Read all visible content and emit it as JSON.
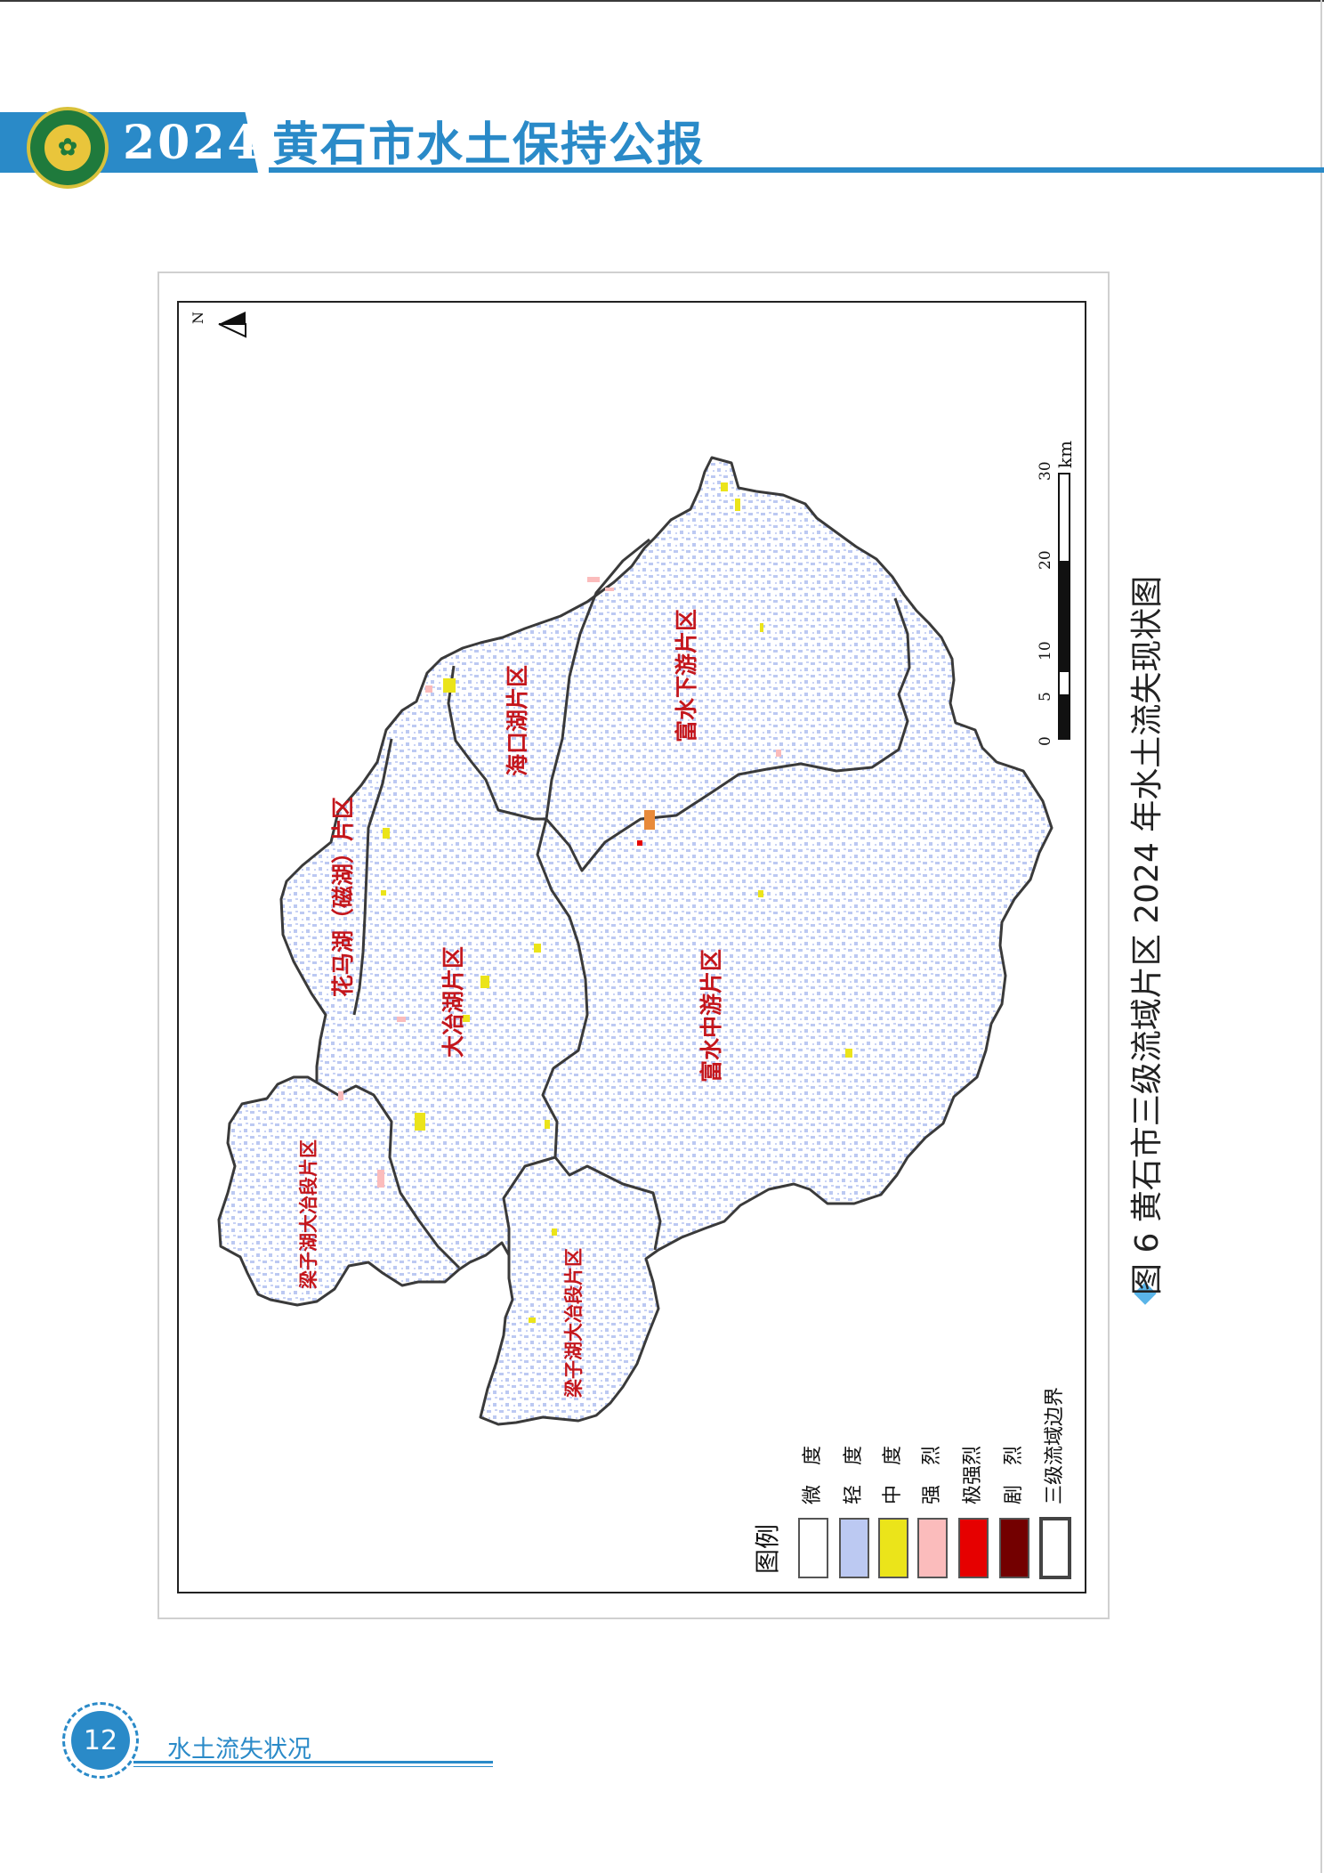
{
  "header": {
    "year": "2024",
    "title": "黄石市水土保持公报",
    "emblem_icon": "soil-conservation-emblem-icon"
  },
  "map": {
    "north_label": "N",
    "scale_labels": [
      "0",
      "5",
      "10",
      "20",
      "30"
    ],
    "scale_unit": "km",
    "regions": [
      "富水下游片区",
      "海口湖片区",
      "花马湖（磁湖）片区",
      "大冶湖片区",
      "富水中游片区",
      "梁子湖大冶段片区",
      "梁子湖大冶段片区"
    ],
    "legend_title": "图例",
    "legend": [
      {
        "label": "微　度",
        "color": "#ffffff"
      },
      {
        "label": "轻　度",
        "color": "#bcc9f2"
      },
      {
        "label": "中　度",
        "color": "#ebe41a"
      },
      {
        "label": "强　烈",
        "color": "#fbbcbc"
      },
      {
        "label": "极强烈",
        "color": "#e60000"
      },
      {
        "label": "剧　烈",
        "color": "#730000"
      },
      {
        "label": "三级流域边界",
        "color": "#555555"
      }
    ]
  },
  "caption": "图 6  黄石市三级流域片区 2024 年水土流失现状图",
  "footer": {
    "page_number": "12",
    "section": "水土流失状况"
  }
}
